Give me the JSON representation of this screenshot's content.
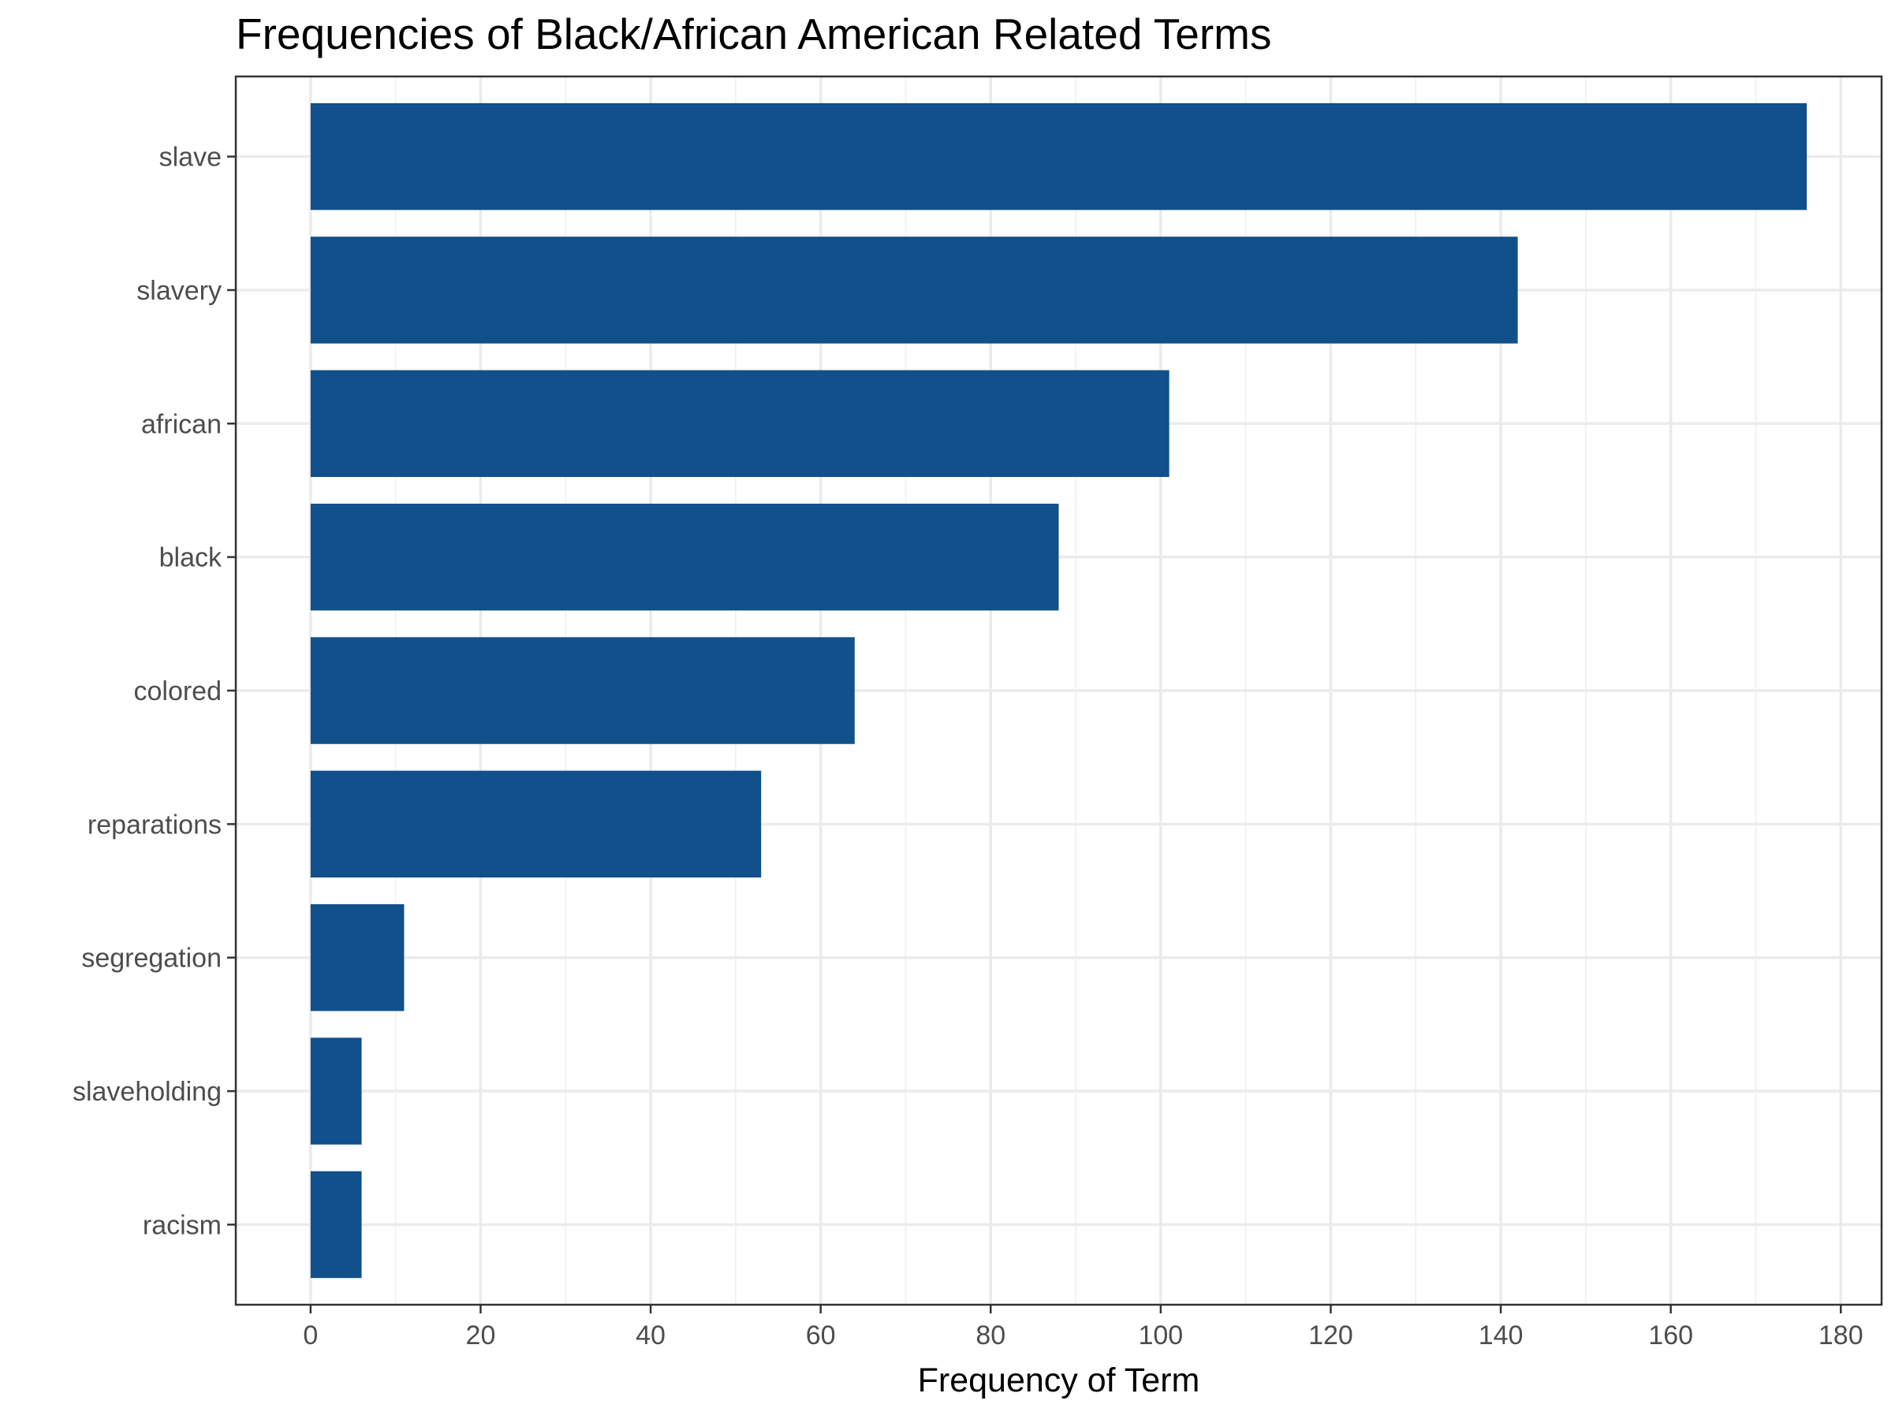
{
  "chart_data": {
    "type": "bar",
    "orientation": "horizontal",
    "title": "Frequencies of Black/African American Related Terms",
    "xlabel": "Frequency of Term",
    "ylabel": "",
    "categories": [
      "slave",
      "slavery",
      "african",
      "black",
      "colored",
      "reparations",
      "segregation",
      "slaveholding",
      "racism"
    ],
    "values": [
      176,
      142,
      101,
      88,
      64,
      53,
      11,
      6,
      6
    ],
    "xlim": [
      -8.8,
      184.8
    ],
    "x_ticks": [
      "0",
      "20",
      "40",
      "60",
      "80",
      "100",
      "120",
      "140",
      "160",
      "180"
    ],
    "bar_color": "#11508a",
    "grid": true,
    "legend": "none"
  }
}
